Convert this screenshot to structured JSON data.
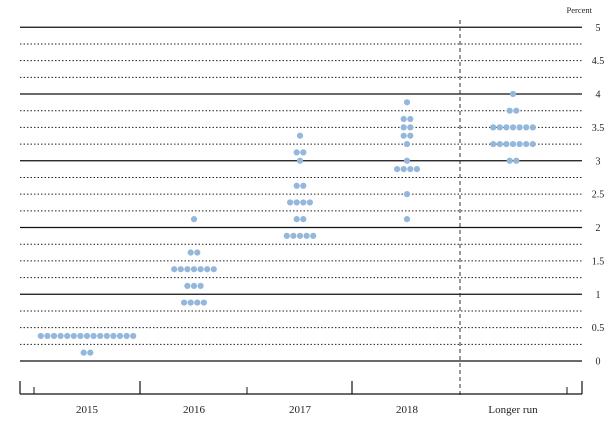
{
  "chart_data": {
    "type": "scatter",
    "ylabel": "Percent",
    "ylim": [
      0,
      5
    ],
    "yticks": [
      "0",
      "0.5",
      "1",
      "1.5",
      "2",
      "2.5",
      "3",
      "3.5",
      "4",
      "4.5",
      "5"
    ],
    "categories": [
      "2015",
      "2016",
      "2017",
      "2018",
      "Longer run"
    ],
    "grid": true,
    "dot_color": "#94b7dc",
    "dots_by_category": [
      {
        "category": "2015",
        "points": [
          {
            "y": 0.375,
            "count": 15
          },
          {
            "y": 0.125,
            "count": 2
          }
        ]
      },
      {
        "category": "2016",
        "points": [
          {
            "y": 2.125,
            "count": 1
          },
          {
            "y": 1.625,
            "count": 2
          },
          {
            "y": 1.375,
            "count": 7
          },
          {
            "y": 1.125,
            "count": 3
          },
          {
            "y": 0.875,
            "count": 4
          }
        ]
      },
      {
        "category": "2017",
        "points": [
          {
            "y": 3.375,
            "count": 1
          },
          {
            "y": 3.125,
            "count": 2
          },
          {
            "y": 3.0,
            "count": 1
          },
          {
            "y": 2.625,
            "count": 2
          },
          {
            "y": 2.375,
            "count": 4
          },
          {
            "y": 2.125,
            "count": 2
          },
          {
            "y": 1.875,
            "count": 5
          }
        ]
      },
      {
        "category": "2018",
        "points": [
          {
            "y": 3.875,
            "count": 1
          },
          {
            "y": 3.625,
            "count": 2
          },
          {
            "y": 3.5,
            "count": 2
          },
          {
            "y": 3.375,
            "count": 2
          },
          {
            "y": 3.25,
            "count": 1
          },
          {
            "y": 3.0,
            "count": 1
          },
          {
            "y": 2.875,
            "count": 4
          },
          {
            "y": 2.5,
            "count": 1
          },
          {
            "y": 2.125,
            "count": 1
          }
        ]
      },
      {
        "category": "Longer run",
        "points": [
          {
            "y": 4.0,
            "count": 1
          },
          {
            "y": 3.75,
            "count": 2
          },
          {
            "y": 3.5,
            "count": 7
          },
          {
            "y": 3.25,
            "count": 7
          },
          {
            "y": 3.0,
            "count": 2
          }
        ]
      }
    ]
  }
}
